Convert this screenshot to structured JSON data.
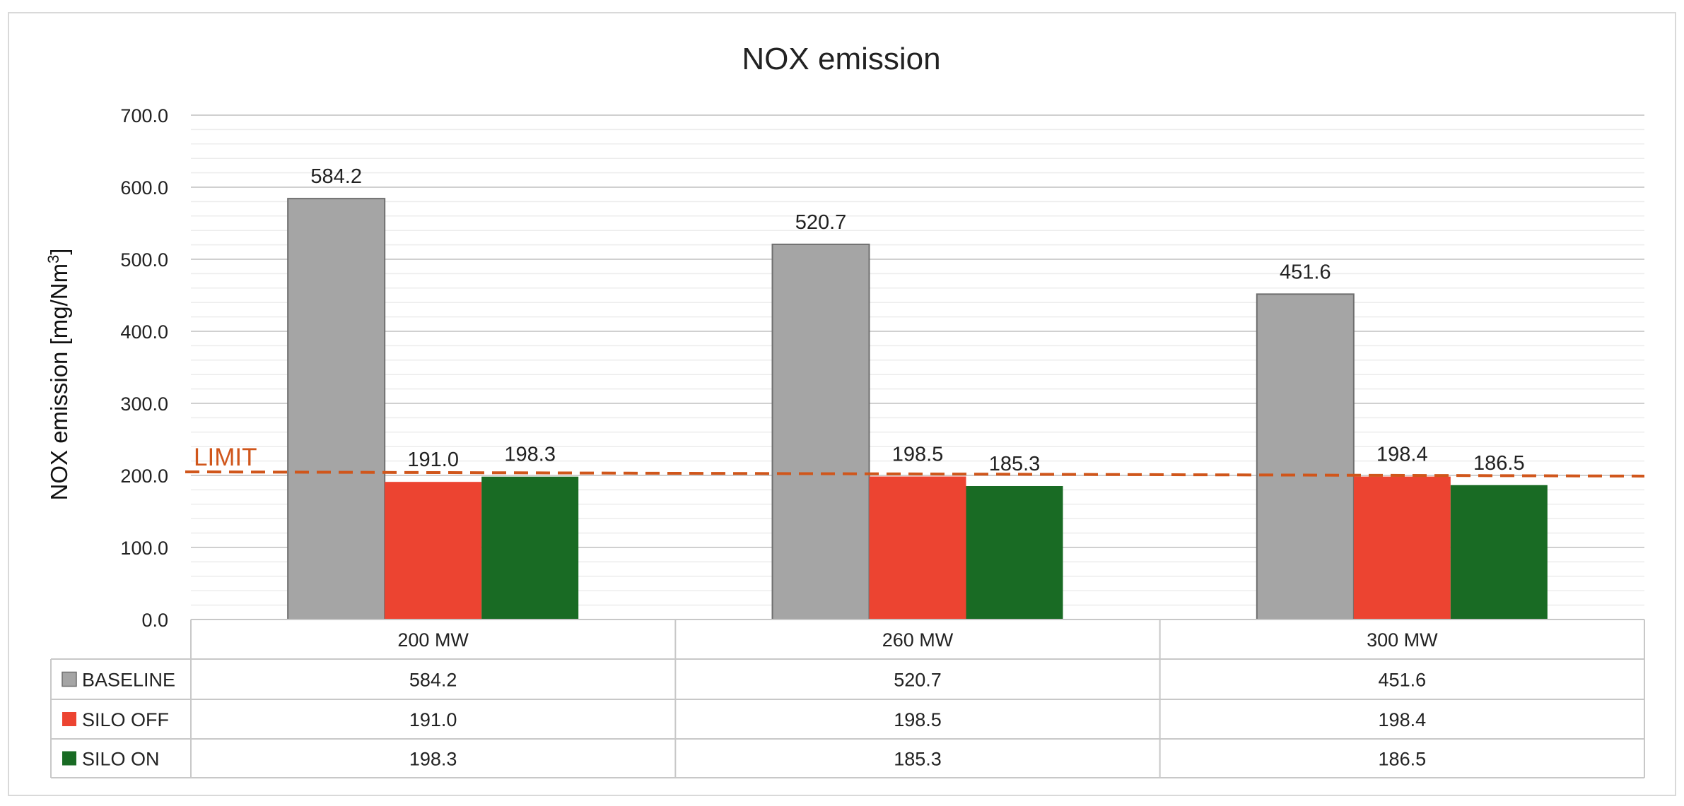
{
  "chart_data": {
    "type": "bar",
    "title": "NOX emission",
    "ylabel": "NOX emission [mg/Nm",
    "ylabel_sup": "3",
    "ylabel_close": "]",
    "ylim": [
      0,
      700
    ],
    "yticks": [
      "0.0",
      "100.0",
      "200.0",
      "300.0",
      "400.0",
      "500.0",
      "600.0",
      "700.0"
    ],
    "minor_grid": true,
    "categories": [
      "200 MW",
      "260 MW",
      "300 MW"
    ],
    "series": [
      {
        "name": "BASELINE",
        "color": "#a5a5a5",
        "values": [
          584.2,
          520.7,
          451.6
        ],
        "labels": [
          "584.2",
          "520.7",
          "451.6"
        ]
      },
      {
        "name": "SILO OFF",
        "color": "#ec4431",
        "values": [
          191.0,
          198.5,
          198.4
        ],
        "labels": [
          "191.0",
          "198.5",
          "198.4"
        ]
      },
      {
        "name": "SILO ON",
        "color": "#196b24",
        "values": [
          198.3,
          185.3,
          186.5
        ],
        "labels": [
          "198.3",
          "185.3",
          "186.5"
        ]
      }
    ],
    "limit": {
      "label": "LIMIT",
      "value": 202,
      "color": "#d0561b"
    },
    "data_table": true
  }
}
